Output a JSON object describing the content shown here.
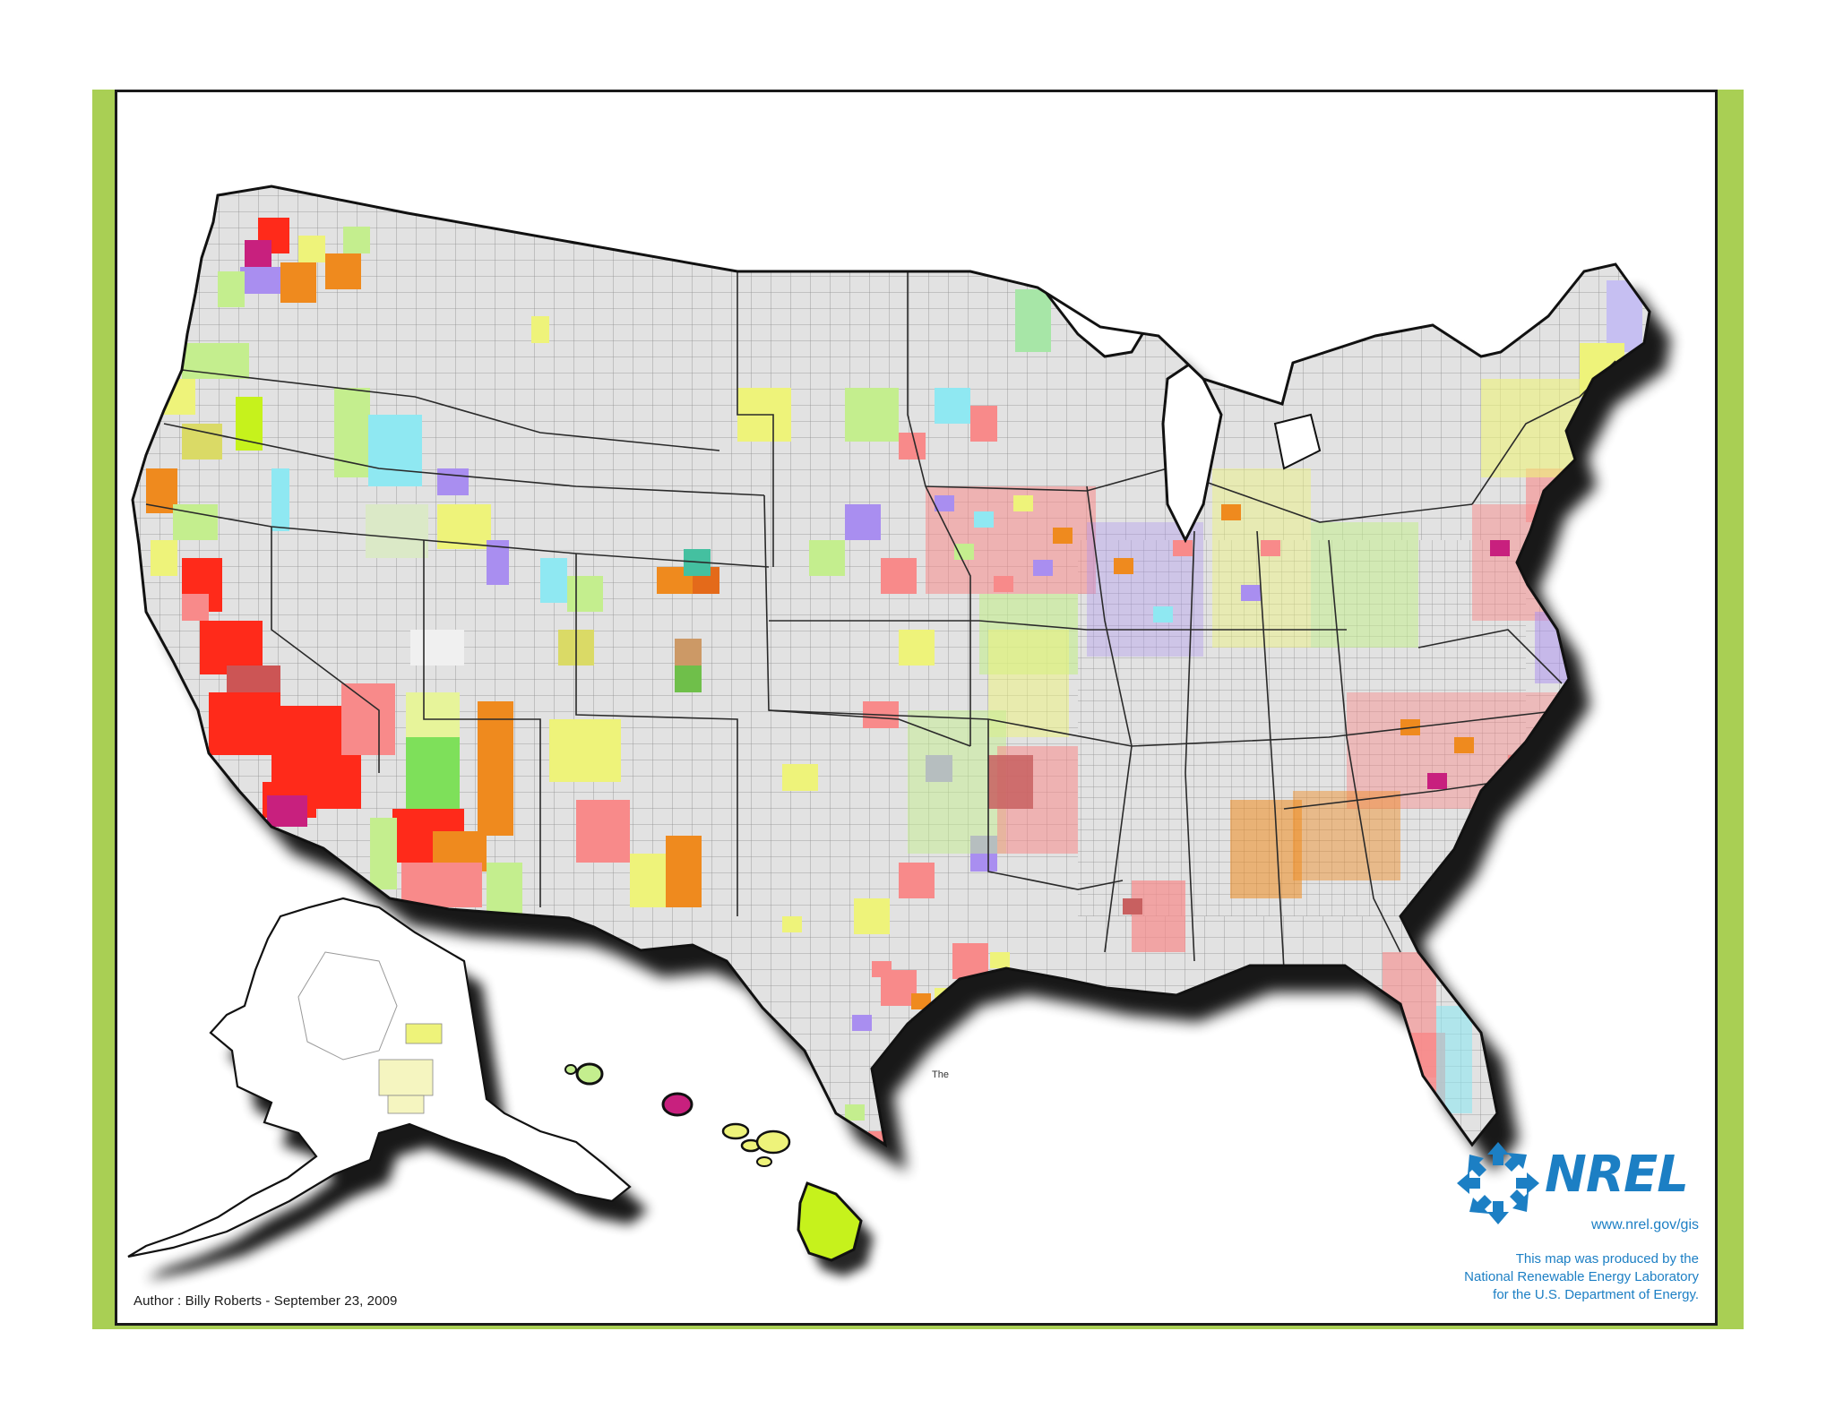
{
  "author_line": "Author : Billy Roberts - September 23, 2009",
  "stray_label": "The",
  "logo": {
    "wordmark": "NREL",
    "url": "www.nrel.gov/gis",
    "icon": "nrel-arrows-logo-icon"
  },
  "credit_lines": [
    "This map was produced by the",
    "National Renewable Energy Laboratory",
    "for the U.S. Department of Energy."
  ],
  "colors": {
    "frame_green": "#a9cf54",
    "brand_blue": "#1c7fc4",
    "county_gray": "#e2e2e2",
    "county_border": "#8e8e8e",
    "red": "#ff2a1a",
    "salmon": "#f88a8a",
    "orange": "#ef8a1e",
    "yellow": "#eef37a",
    "light_green": "#c4ee8e",
    "purple": "#a98ef0",
    "cyan": "#8fe8f2",
    "magenta": "#c8207e",
    "lime": "#c6f21c"
  }
}
